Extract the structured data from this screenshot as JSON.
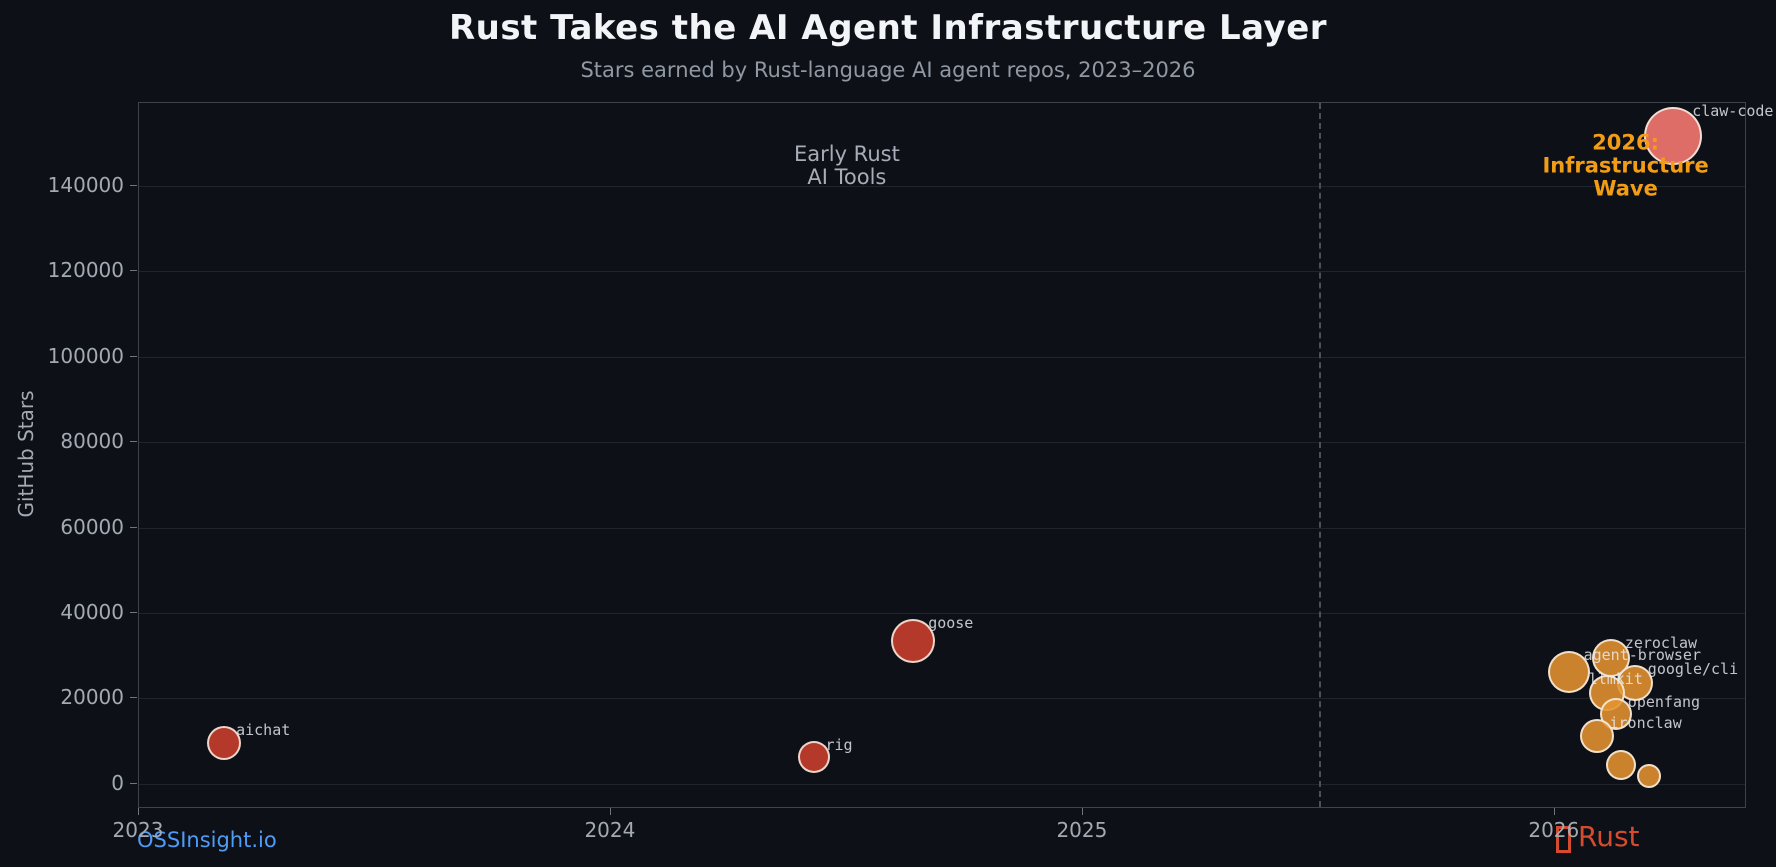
{
  "header": {
    "title": "Rust Takes the AI Agent Infrastructure Layer",
    "subtitle": "Stars earned by Rust-language AI agent repos, 2023–2026"
  },
  "footer": {
    "watermark": "OSSInsight.io",
    "brand": "Rust"
  },
  "colors": {
    "background": "#0d1117",
    "plot_border": "#3e444d",
    "gridline": "#1f242c",
    "tick_text": "#a3aab4",
    "title_text": "#f2f4f7",
    "subtitle_text": "#9098a3",
    "early_bubble_red": "#bf3c2b",
    "wave_bubble_orange": "#e59330",
    "breakout_bubble_salmon": "#e5706a",
    "annotation_gray": "#a6adb8",
    "annotation_orange": "#f39c15",
    "watermark_blue": "#4e9cf5",
    "brand_red": "#d64b2e"
  },
  "chart_data": {
    "type": "scatter",
    "title": "Rust Takes the AI Agent Infrastructure Layer",
    "subtitle": "Stars earned by Rust-language AI agent repos, 2023–2026",
    "xlabel": "",
    "ylabel": "GitHub Stars",
    "xlim": [
      2023,
      2026.403
    ],
    "ylim": [
      -5400,
      159300
    ],
    "x_ticks": [
      2023,
      2024,
      2025,
      2026
    ],
    "y_ticks": [
      0,
      20000,
      40000,
      60000,
      80000,
      100000,
      120000,
      140000
    ],
    "grid": "horizontal-only",
    "legend": "none",
    "divider": {
      "x": 2025.5,
      "style": "dashed"
    },
    "series": [
      {
        "name": "early-rust-ai-tools",
        "color": "#bf3c2b",
        "alpha": 0.95,
        "points": [
          {
            "name": "aichat",
            "year": 2023.18,
            "stars": 9500,
            "r": 17
          },
          {
            "name": "rig",
            "year": 2024.43,
            "stars": 6300,
            "r": 16
          },
          {
            "name": "goose",
            "year": 2024.64,
            "stars": 33500,
            "r": 22
          }
        ]
      },
      {
        "name": "infrastructure-wave-2026",
        "color": "#e59330",
        "alpha": 0.88,
        "points": [
          {
            "name": "agent-browser",
            "year": 2026.03,
            "stars": 26200,
            "r": 21
          },
          {
            "name": "zeroclaw",
            "year": 2026.12,
            "stars": 29500,
            "r": 19
          },
          {
            "name": "google/cli",
            "year": 2026.17,
            "stars": 23600,
            "r": 18
          },
          {
            "name": "llmkit",
            "year": 2026.11,
            "stars": 21300,
            "r": 18,
            "label_dx": -18
          },
          {
            "name": "openfang",
            "year": 2026.13,
            "stars": 16400,
            "r": 16
          },
          {
            "name": "ironclaw",
            "year": 2026.09,
            "stars": 11200,
            "r": 17
          },
          {
            "name": "",
            "year": 2026.14,
            "stars": 4400,
            "r": 15
          },
          {
            "name": "",
            "year": 2026.2,
            "stars": 1900,
            "r": 12
          }
        ]
      },
      {
        "name": "breakout",
        "color": "#e5706a",
        "alpha": 0.97,
        "points": [
          {
            "name": "claw-code",
            "year": 2026.25,
            "stars": 151500,
            "r": 29
          }
        ]
      }
    ],
    "annotations": [
      {
        "id": "early",
        "lines": [
          "Early Rust",
          "AI Tools"
        ],
        "x": 2024.5,
        "y": 144500,
        "style": "early"
      },
      {
        "id": "wave",
        "lines": [
          "2026: Infrastructure",
          "Wave"
        ],
        "x": 2026.15,
        "y": 144500,
        "style": "wave"
      }
    ]
  }
}
